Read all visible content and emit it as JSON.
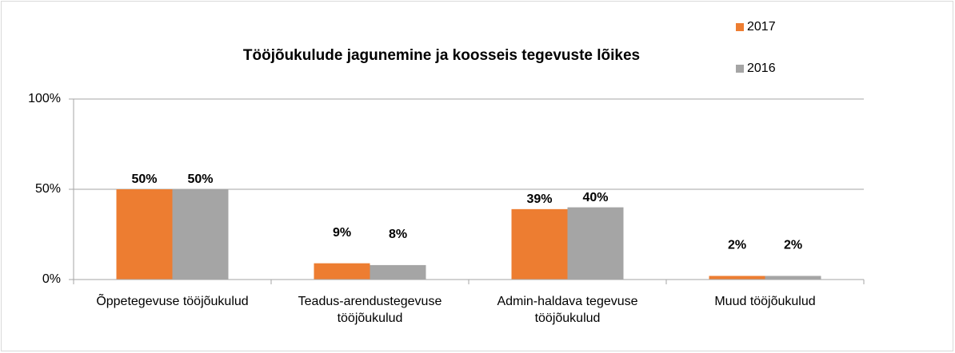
{
  "chart_data": {
    "type": "bar",
    "title": "Tööjõukulude jagunemine ja koosseis tegevuste lõikes",
    "categories": [
      "Õppetegevuse tööjõukulud",
      "Teadus-arendustegevuse tööjõukulud",
      "Admin-haldava tegevuse tööjõukulud",
      "Muud tööjõukulud"
    ],
    "series": [
      {
        "name": "2017",
        "color": "#ed7d31",
        "values": [
          50,
          9,
          39,
          2
        ],
        "value_labels": [
          "50%",
          "9%",
          "39%",
          "2%"
        ]
      },
      {
        "name": "2016",
        "color": "#a5a5a5",
        "values": [
          50,
          8,
          40,
          2
        ],
        "value_labels": [
          "50%",
          "8%",
          "40%",
          "2%"
        ]
      }
    ],
    "ylim": [
      0,
      100
    ],
    "yticks": [
      {
        "value": 0,
        "label": "0%"
      },
      {
        "value": 50,
        "label": "50%"
      },
      {
        "value": 100,
        "label": "100%"
      }
    ],
    "grid": true,
    "legend": "top-right"
  }
}
